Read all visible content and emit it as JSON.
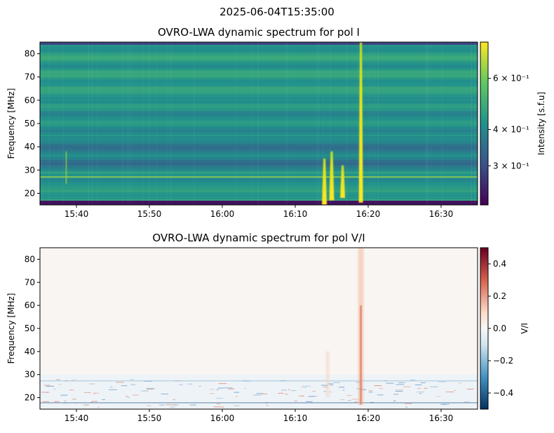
{
  "suptitle": "2025-06-04T15:35:00",
  "chart_data": [
    {
      "type": "heatmap",
      "title": "OVRO-LWA dynamic spectrum for pol I",
      "xlabel": "",
      "ylabel": "Frequency [MHz]",
      "x_range": [
        "15:35",
        "16:35"
      ],
      "x_ticks": [
        "15:40",
        "15:50",
        "16:00",
        "16:10",
        "16:20",
        "16:30"
      ],
      "ylim": [
        15,
        85
      ],
      "y_ticks": [
        20,
        30,
        40,
        50,
        60,
        70,
        80
      ],
      "colormap": "viridis",
      "colorbar": {
        "label": "Intensity [s.f.u]",
        "scale": "log",
        "range": [
          0.22,
          0.8
        ],
        "ticks": [
          {
            "value": 0.3,
            "label": "3 × 10⁻¹"
          },
          {
            "value": 0.4,
            "label": "4 × 10⁻¹"
          },
          {
            "value": 0.6,
            "label": "6 × 10⁻¹"
          }
        ]
      },
      "features": [
        {
          "kind": "burst",
          "time": "16:14",
          "freq_range": [
            15,
            35
          ],
          "intensity": 0.8
        },
        {
          "kind": "burst",
          "time": "16:15",
          "freq_range": [
            17,
            38
          ],
          "intensity": 0.75
        },
        {
          "kind": "burst",
          "time": "16:16.5",
          "freq_range": [
            18,
            32
          ],
          "intensity": 0.7
        },
        {
          "kind": "burst",
          "time": "16:19",
          "freq_range": [
            16,
            85
          ],
          "intensity": 0.8
        },
        {
          "kind": "rfi_line",
          "freq": 27,
          "intensity": 0.45
        }
      ]
    },
    {
      "type": "heatmap",
      "title": "OVRO-LWA dynamic spectrum for pol V/I",
      "xlabel": "",
      "ylabel": "Frequency [MHz]",
      "x_range": [
        "15:35",
        "16:35"
      ],
      "x_ticks": [
        "15:40",
        "15:50",
        "16:00",
        "16:10",
        "16:20",
        "16:30"
      ],
      "ylim": [
        15,
        85
      ],
      "y_ticks": [
        20,
        30,
        40,
        50,
        60,
        70,
        80
      ],
      "colormap": "RdBu_r",
      "colorbar": {
        "label": "V/I",
        "scale": "linear",
        "range": [
          -0.5,
          0.5
        ],
        "ticks": [
          {
            "value": 0.4,
            "label": "0.4"
          },
          {
            "value": 0.2,
            "label": "0.2"
          },
          {
            "value": 0.0,
            "label": "0.0"
          },
          {
            "value": -0.2,
            "label": "−0.2"
          },
          {
            "value": -0.4,
            "label": "−0.4"
          }
        ]
      },
      "features": [
        {
          "kind": "burst",
          "time": "16:19",
          "freq_range": [
            17,
            85
          ],
          "value": 0.25
        }
      ]
    }
  ]
}
